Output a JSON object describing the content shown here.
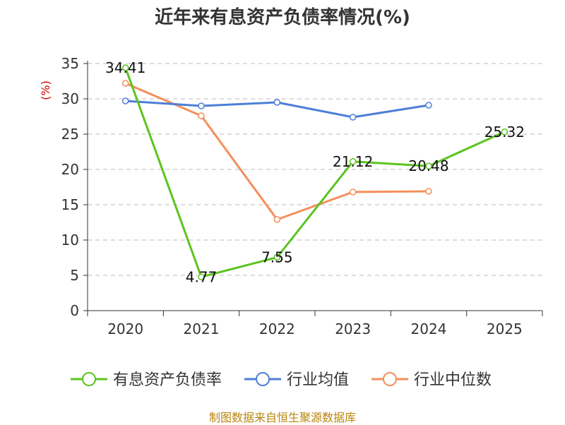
{
  "chart_data": {
    "type": "line",
    "title": "近年来有息资产负债率情况(%)",
    "ylabel": "(%)",
    "categories": [
      "2020",
      "2021",
      "2022",
      "2023",
      "2024",
      "2025"
    ],
    "ylim": [
      0,
      35
    ],
    "yticks": [
      "0",
      "5",
      "10",
      "15",
      "20",
      "25",
      "30",
      "35"
    ],
    "grid": true,
    "legend_position": "bottom",
    "series": [
      {
        "name": "有息资产负债率",
        "color": "#5bc41f",
        "values": [
          34.41,
          4.77,
          7.55,
          21.12,
          20.48,
          25.32
        ],
        "labels": [
          "34.41",
          "4.77",
          "7.55",
          "21.12",
          "20.48",
          "25.32"
        ]
      },
      {
        "name": "行业均值",
        "color": "#4e7fd8",
        "values": [
          29.7,
          29.0,
          29.5,
          27.4,
          29.1,
          null
        ]
      },
      {
        "name": "行业中位数",
        "color": "#f48f5a",
        "values": [
          32.2,
          27.6,
          12.9,
          16.8,
          16.9,
          null
        ]
      }
    ]
  },
  "source": "制图数据来自恒生聚源数据库",
  "colors": {
    "axis": "#333333",
    "grid": "#bbbbbb",
    "ylabel": "#cc0000",
    "source": "#b8860b"
  }
}
